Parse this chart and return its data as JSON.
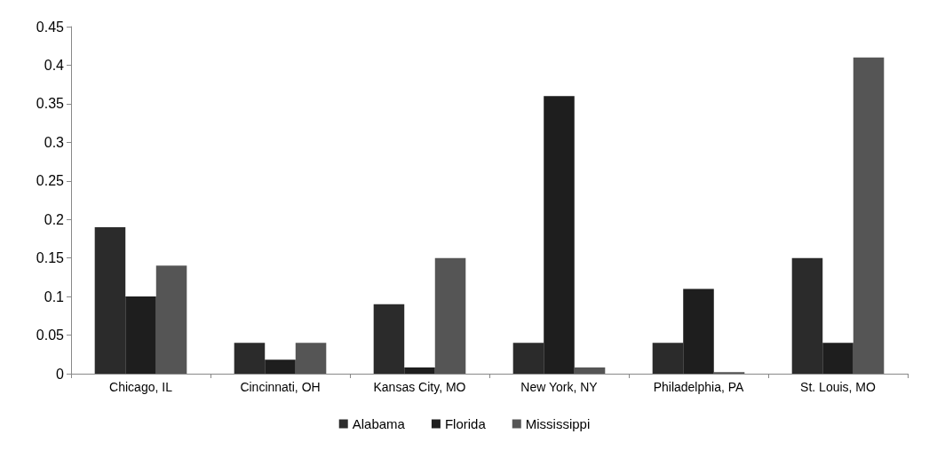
{
  "chart_data": {
    "type": "bar",
    "categories": [
      "Chicago, IL",
      "Cincinnati, OH",
      "Kansas City, MO",
      "New York, NY",
      "Philadelphia, PA",
      "St. Louis, MO"
    ],
    "series": [
      {
        "name": "Alabama",
        "color": "#2b2b2b",
        "values": [
          0.19,
          0.04,
          0.09,
          0.04,
          0.04,
          0.15
        ]
      },
      {
        "name": "Florida",
        "color": "#1e1e1e",
        "values": [
          0.1,
          0.018,
          0.008,
          0.36,
          0.11,
          0.04
        ]
      },
      {
        "name": "Mississippi",
        "color": "#555555",
        "values": [
          0.14,
          0.04,
          0.15,
          0.008,
          0.002,
          0.41
        ]
      }
    ],
    "ylim": [
      0,
      0.45
    ],
    "yticks": [
      0,
      0.05,
      0.1,
      0.15,
      0.2,
      0.25,
      0.3,
      0.35,
      0.4,
      0.45
    ],
    "grid": false,
    "legend": "bottom"
  }
}
